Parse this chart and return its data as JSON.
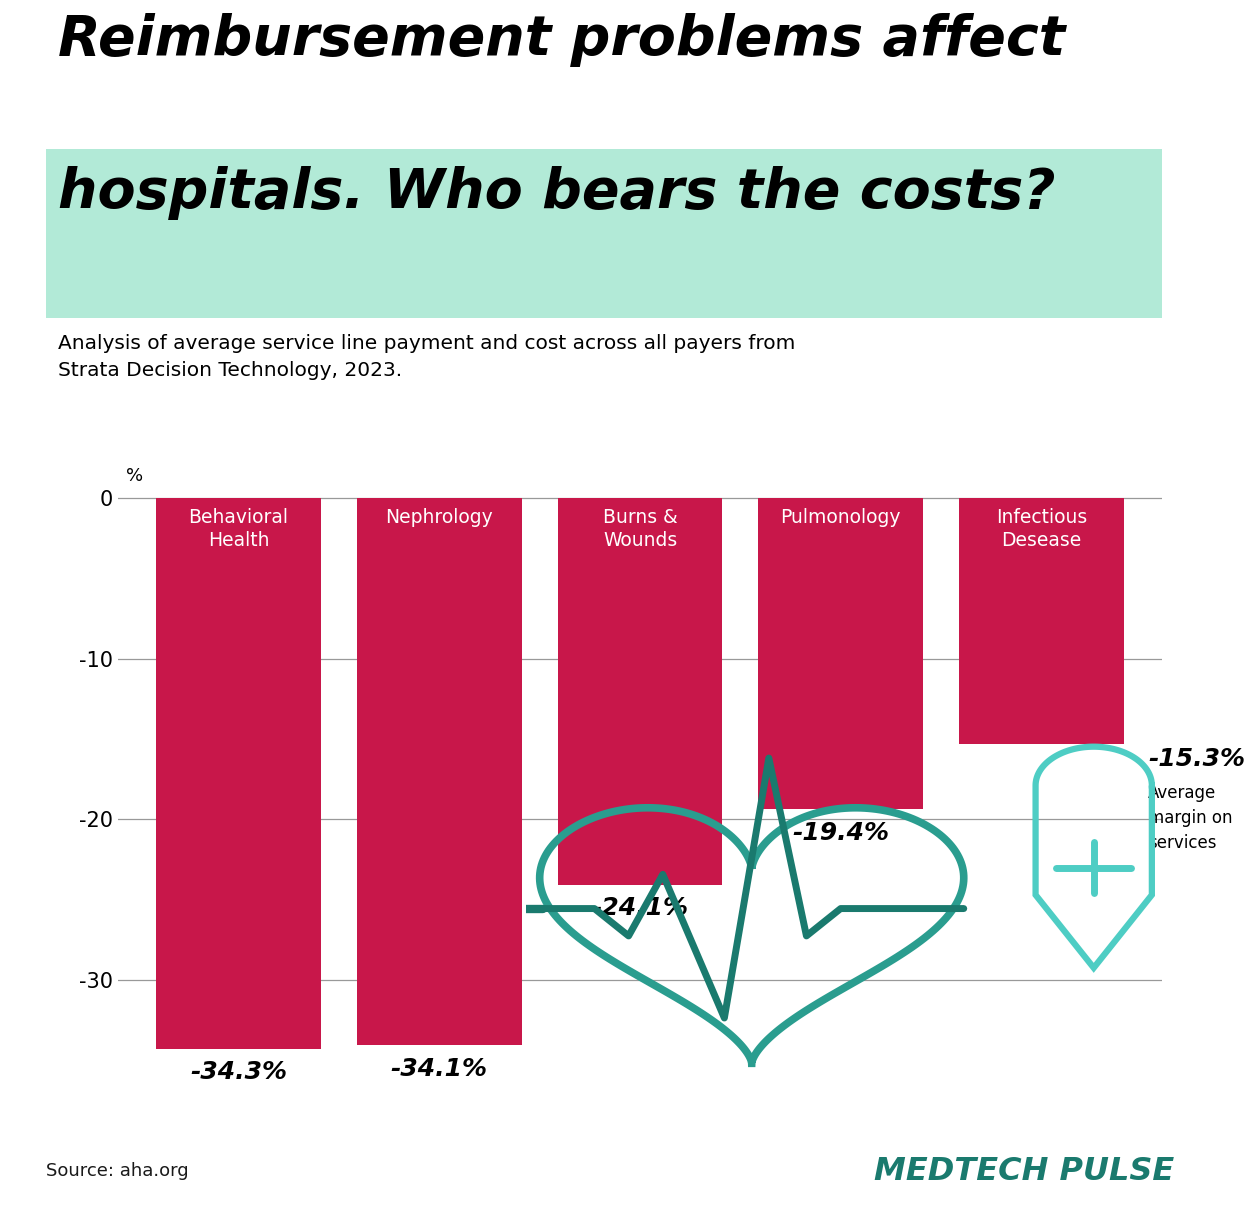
{
  "title_line1": "Reimbursement problems affect",
  "title_line2": "hospitals. Who bears the costs?",
  "subtitle": "Analysis of average service line payment and cost across all payers from\nStrata Decision Technology, 2023.",
  "categories": [
    "Behavioral\nHealth",
    "Nephrology",
    "Burns &\nWounds",
    "Pulmonology",
    "Infectious\nDesease"
  ],
  "values": [
    -34.3,
    -34.1,
    -24.1,
    -19.4,
    -15.3
  ],
  "value_labels": [
    "-34.3%",
    "-34.1%",
    "-24.1%",
    "-19.4%",
    "-15.3%"
  ],
  "bar_color": "#C8174A",
  "background_color": "#FFFFFF",
  "title_highlight_color": "#B2EAD7",
  "footer_color": "#B2EAD7",
  "teal_dark": "#1A7A6E",
  "teal_mid": "#2A9D8F",
  "teal_light": "#4ECDC4",
  "ylim_min": -38,
  "ylim_max": 2,
  "yticks": [
    0,
    -10,
    -20,
    -30
  ],
  "source_text": "Source: aha.org",
  "brand_text": "MEDTECH PULSE",
  "avg_margin_pct": "-15.3%",
  "avg_margin_label": "Average\nmargin on\nservices"
}
